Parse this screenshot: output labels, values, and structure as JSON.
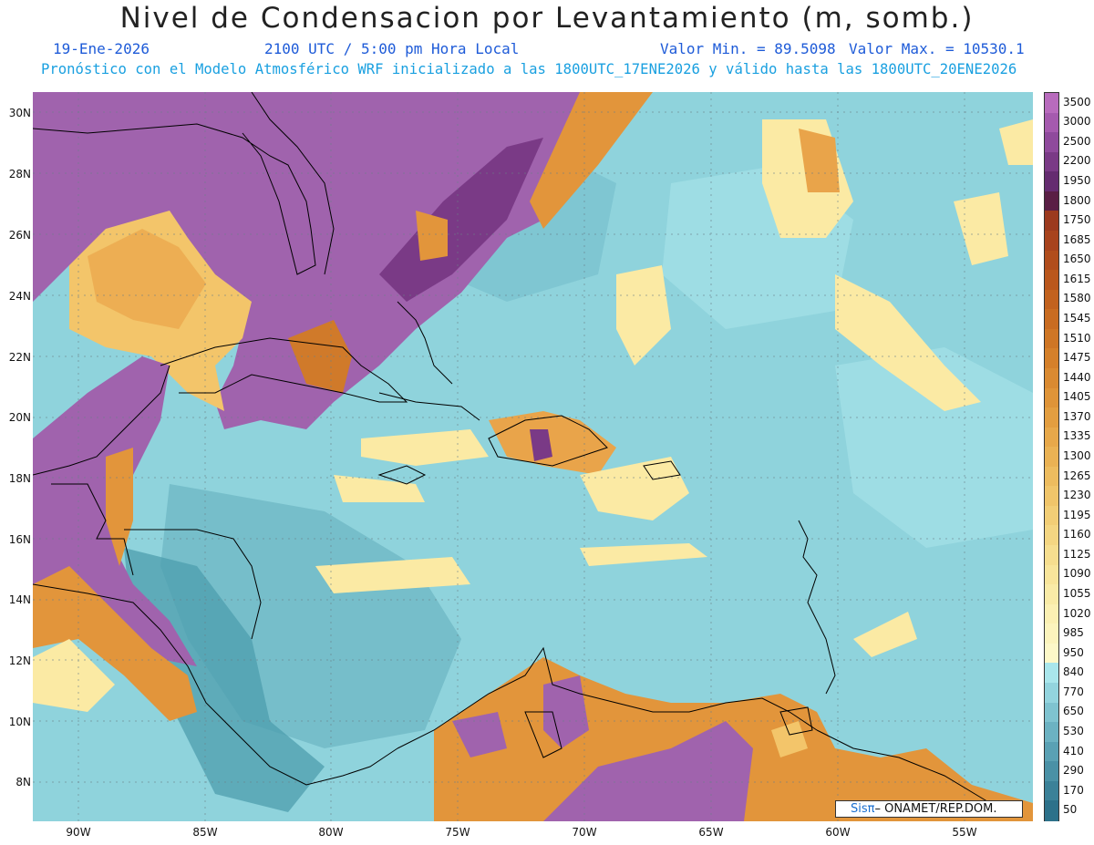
{
  "header": {
    "title": "Nivel de Condensacion por Levantamiento (m, somb.)",
    "date": "19-Ene-2026",
    "time": "2100 UTC / 5:00 pm Hora Local",
    "min_label": "Valor Min. = 89.5098",
    "max_label": "Valor Max. = 10530.1",
    "forecast": "Pronóstico con el Modelo Atmosférico WRF inicializado a las 1800UTC_17ENE2026 y válido hasta las  1800UTC_20ENE2026"
  },
  "axes": {
    "lat_labels": [
      "30N",
      "28N",
      "26N",
      "24N",
      "22N",
      "20N",
      "18N",
      "16N",
      "14N",
      "12N",
      "10N",
      "8N"
    ],
    "lon_labels": [
      "90W",
      "85W",
      "80W",
      "75W",
      "70W",
      "65W",
      "60W",
      "55W"
    ]
  },
  "colorbar": {
    "labels": [
      "3500",
      "3000",
      "2500",
      "2200",
      "1950",
      "1800",
      "1750",
      "1685",
      "1650",
      "1615",
      "1580",
      "1545",
      "1510",
      "1475",
      "1440",
      "1405",
      "1370",
      "1335",
      "1300",
      "1265",
      "1230",
      "1195",
      "1160",
      "1125",
      "1090",
      "1055",
      "1020",
      "985",
      "950",
      "840",
      "770",
      "650",
      "530",
      "410",
      "290",
      "170",
      "50"
    ],
    "colors": [
      "#b86bbd",
      "#a55aae",
      "#8f4a9c",
      "#7a3a86",
      "#652c70",
      "#5a1f45",
      "#9c3a1e",
      "#a8431d",
      "#b14d1c",
      "#ba571c",
      "#c2621e",
      "#c96c21",
      "#cf7625",
      "#d5802a",
      "#da8a31",
      "#df9438",
      "#e39e40",
      "#e7a84a",
      "#eab254",
      "#edbc5f",
      "#f0c56a",
      "#f2ce76",
      "#f4d682",
      "#f6de8f",
      "#f8e59b",
      "#f9eba7",
      "#fbf0b3",
      "#fcf4bd",
      "#fdf8c8",
      "#a9e6ec",
      "#93d4de",
      "#7fc3d0",
      "#6cb2c2",
      "#5aa1b4",
      "#4a91a6",
      "#3b8198",
      "#2d718a"
    ]
  },
  "credit": {
    "brand": "Sis",
    "pi": "π",
    "text": "– ONAMET/REP.DOM."
  },
  "colors": {
    "ocean": "#8fd3dc",
    "purple": "#a063ad",
    "orange": "#e2953b",
    "yellow": "#fbeaa4"
  }
}
